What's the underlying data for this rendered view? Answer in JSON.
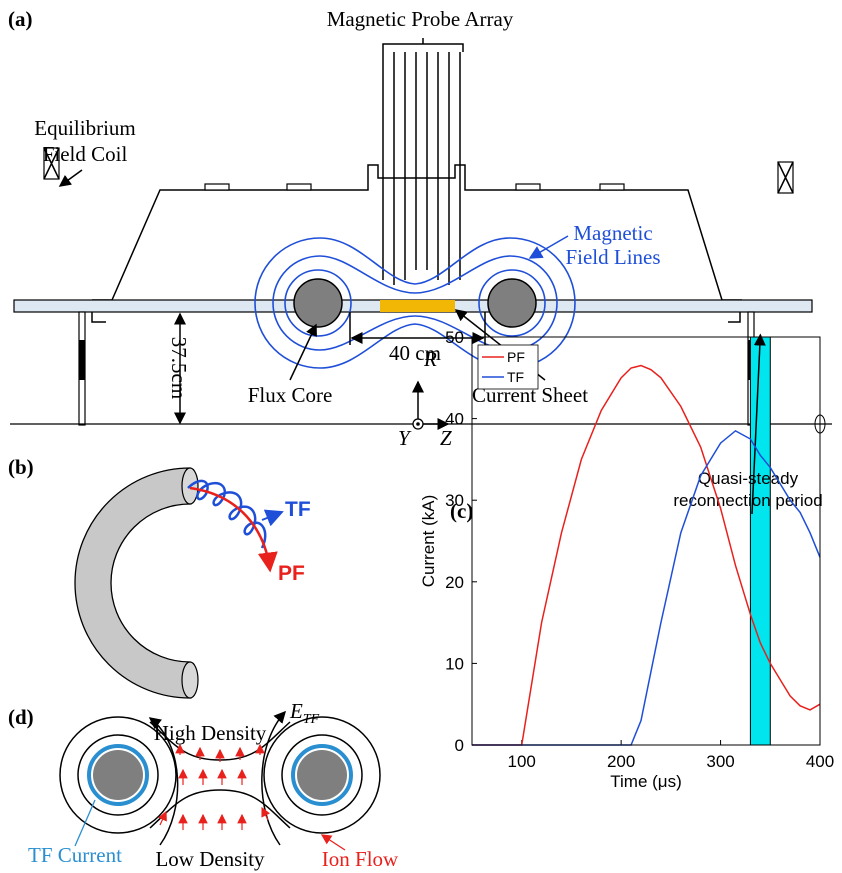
{
  "panel_a": {
    "label": "(a)",
    "title": "Magnetic Probe Array",
    "coil_label": [
      "Equilibrium",
      "Field Coil"
    ],
    "field_lines_label": [
      "Magnetic",
      "Field Lines"
    ],
    "radius": "37.5cm",
    "separation": "40 cm",
    "flux_core": "Flux Core",
    "current_sheet": "Current Sheet",
    "axis_r": "R",
    "axis_y": "Y",
    "axis_z": "Z"
  },
  "panel_b": {
    "label": "(b)",
    "tf": "TF",
    "pf": "PF"
  },
  "panel_d": {
    "label": "(d)",
    "e_symbol": "E",
    "e_subscript": "TF",
    "high_density": "High Density",
    "low_density": "Low Density",
    "tf_current": "TF Current",
    "ion_flow": "Ion Flow"
  },
  "chart_data": {
    "type": "line",
    "panel_label": "(c)",
    "annotation": [
      "Quasi-steady",
      "reconnection period"
    ],
    "x_label": "Time (μs)",
    "y_label": "Current (kA)",
    "x": [
      50,
      100,
      120,
      140,
      160,
      180,
      200,
      210,
      220,
      230,
      240,
      260,
      280,
      300,
      315,
      330,
      340,
      350,
      360,
      370,
      380,
      390,
      400
    ],
    "series": [
      {
        "name": "PF",
        "color": "#e8211d",
        "values": [
          0,
          0,
          15,
          26,
          35,
          41,
          45,
          46.2,
          46.5,
          46,
          45,
          41.5,
          36.5,
          29,
          22,
          16,
          12.5,
          10,
          8,
          6,
          4.8,
          4.3,
          5
        ]
      },
      {
        "name": "TF",
        "color": "#1f4fd8",
        "values": [
          0,
          0,
          0,
          0,
          0,
          0,
          0,
          0,
          3,
          9,
          15,
          26,
          33,
          37,
          38.5,
          37.5,
          35.5,
          34,
          32,
          30,
          28.5,
          26,
          23
        ]
      }
    ],
    "shaded_region": {
      "range": [
        330,
        350
      ],
      "color": "#00e5ee"
    },
    "xlim": [
      50,
      400
    ],
    "xticks": [
      100,
      200,
      300,
      400
    ],
    "ylim": [
      0,
      50
    ],
    "yticks": [
      0,
      10,
      20,
      30,
      40,
      50
    ],
    "legend": "top-left"
  }
}
